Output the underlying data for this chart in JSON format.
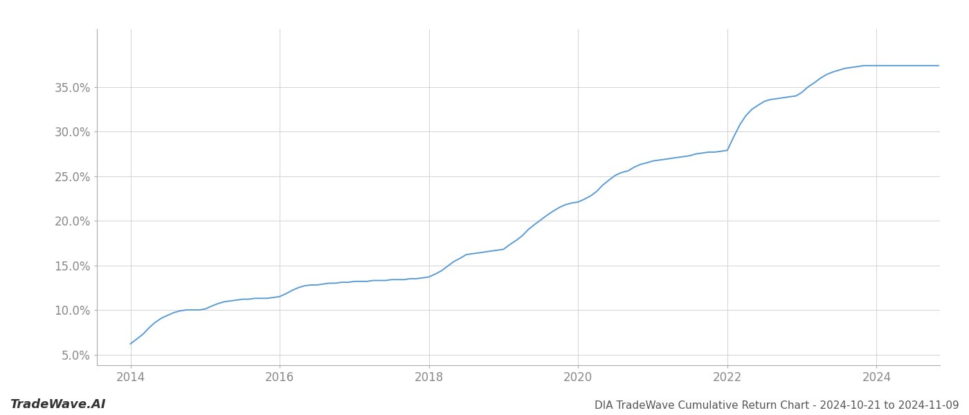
{
  "title": "DIA TradeWave Cumulative Return Chart - 2024-10-21 to 2024-11-09",
  "watermark": "TradeWave.AI",
  "line_color": "#5b9bd5",
  "background_color": "#ffffff",
  "grid_color": "#cccccc",
  "x_years": [
    2014,
    2016,
    2018,
    2020,
    2022,
    2024
  ],
  "x_min": 2013.55,
  "x_max": 2024.85,
  "y_min": 0.038,
  "y_max": 0.415,
  "y_ticks": [
    0.05,
    0.1,
    0.15,
    0.2,
    0.25,
    0.3,
    0.35
  ],
  "data_x": [
    2014.0,
    2014.08,
    2014.17,
    2014.25,
    2014.33,
    2014.42,
    2014.5,
    2014.58,
    2014.67,
    2014.75,
    2014.83,
    2014.92,
    2015.0,
    2015.08,
    2015.17,
    2015.25,
    2015.33,
    2015.42,
    2015.5,
    2015.58,
    2015.67,
    2015.75,
    2015.83,
    2015.92,
    2016.0,
    2016.08,
    2016.17,
    2016.25,
    2016.33,
    2016.42,
    2016.5,
    2016.58,
    2016.67,
    2016.75,
    2016.83,
    2016.92,
    2017.0,
    2017.08,
    2017.17,
    2017.25,
    2017.33,
    2017.42,
    2017.5,
    2017.58,
    2017.67,
    2017.75,
    2017.83,
    2017.92,
    2018.0,
    2018.08,
    2018.17,
    2018.25,
    2018.33,
    2018.42,
    2018.5,
    2018.58,
    2018.67,
    2018.75,
    2018.83,
    2018.92,
    2019.0,
    2019.08,
    2019.17,
    2019.25,
    2019.33,
    2019.42,
    2019.5,
    2019.58,
    2019.67,
    2019.75,
    2019.83,
    2019.92,
    2020.0,
    2020.08,
    2020.17,
    2020.25,
    2020.33,
    2020.42,
    2020.5,
    2020.58,
    2020.67,
    2020.75,
    2020.83,
    2020.92,
    2021.0,
    2021.08,
    2021.17,
    2021.25,
    2021.33,
    2021.42,
    2021.5,
    2021.58,
    2021.67,
    2021.75,
    2021.83,
    2021.92,
    2022.0,
    2022.08,
    2022.17,
    2022.25,
    2022.33,
    2022.42,
    2022.5,
    2022.58,
    2022.67,
    2022.75,
    2022.83,
    2022.92,
    2023.0,
    2023.08,
    2023.17,
    2023.25,
    2023.33,
    2023.42,
    2023.5,
    2023.58,
    2023.67,
    2023.75,
    2023.83,
    2023.92,
    2024.0,
    2024.08,
    2024.17,
    2024.25,
    2024.33,
    2024.42,
    2024.5,
    2024.58,
    2024.67,
    2024.75,
    2024.83
  ],
  "data_y": [
    0.062,
    0.067,
    0.073,
    0.08,
    0.086,
    0.091,
    0.094,
    0.097,
    0.099,
    0.1,
    0.1,
    0.1,
    0.101,
    0.104,
    0.107,
    0.109,
    0.11,
    0.111,
    0.112,
    0.112,
    0.113,
    0.113,
    0.113,
    0.114,
    0.115,
    0.118,
    0.122,
    0.125,
    0.127,
    0.128,
    0.128,
    0.129,
    0.13,
    0.13,
    0.131,
    0.131,
    0.132,
    0.132,
    0.132,
    0.133,
    0.133,
    0.133,
    0.134,
    0.134,
    0.134,
    0.135,
    0.135,
    0.136,
    0.137,
    0.14,
    0.144,
    0.149,
    0.154,
    0.158,
    0.162,
    0.163,
    0.164,
    0.165,
    0.166,
    0.167,
    0.168,
    0.173,
    0.178,
    0.183,
    0.19,
    0.196,
    0.201,
    0.206,
    0.211,
    0.215,
    0.218,
    0.22,
    0.221,
    0.224,
    0.228,
    0.233,
    0.24,
    0.246,
    0.251,
    0.254,
    0.256,
    0.26,
    0.263,
    0.265,
    0.267,
    0.268,
    0.269,
    0.27,
    0.271,
    0.272,
    0.273,
    0.275,
    0.276,
    0.277,
    0.277,
    0.278,
    0.279,
    0.293,
    0.308,
    0.318,
    0.325,
    0.33,
    0.334,
    0.336,
    0.337,
    0.338,
    0.339,
    0.34,
    0.344,
    0.35,
    0.355,
    0.36,
    0.364,
    0.367,
    0.369,
    0.371,
    0.372,
    0.373,
    0.374,
    0.374,
    0.374,
    0.374,
    0.374,
    0.374,
    0.374,
    0.374,
    0.374,
    0.374,
    0.374,
    0.374,
    0.374
  ],
  "title_fontsize": 11,
  "tick_fontsize": 12,
  "watermark_fontsize": 13,
  "line_width": 1.4
}
